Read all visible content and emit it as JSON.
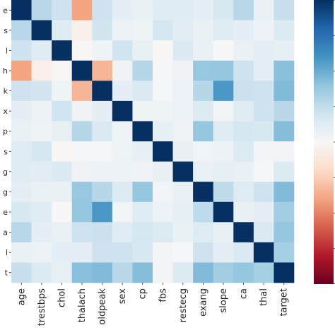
{
  "chart_data": {
    "type": "heatmap",
    "title": "",
    "xlabel": "",
    "ylabel": "",
    "categories": [
      "age",
      "trestbps",
      "chol",
      "thalach",
      "oldpeak",
      "sex",
      "cp",
      "fbs",
      "restecg",
      "exang",
      "slope",
      "ca",
      "thal",
      "target"
    ],
    "ytick_labels": [
      "e",
      "s",
      "l",
      "h",
      "k",
      "x",
      "p",
      "s",
      "g",
      "g",
      "e",
      "a",
      "l",
      "t"
    ],
    "colormap": "RdBu",
    "clim": [
      -1,
      1
    ],
    "colorbar": true,
    "colors": {
      "positive_max": "#053061",
      "neutral": "#f7f7f7",
      "negative_max": "#67001f"
    },
    "matrix": [
      [
        1.0,
        0.28,
        0.21,
        -0.4,
        0.21,
        0.1,
        0.07,
        0.12,
        0.12,
        0.1,
        0.16,
        0.28,
        0.07,
        0.23
      ],
      [
        0.28,
        1.0,
        0.12,
        -0.05,
        0.19,
        0.06,
        0.05,
        0.18,
        0.11,
        0.07,
        0.12,
        0.1,
        0.06,
        0.14
      ],
      [
        0.21,
        0.12,
        1.0,
        -0.01,
        0.05,
        0.2,
        0.08,
        -0.01,
        0.15,
        0.07,
        0.0,
        0.07,
        0.1,
        0.09
      ],
      [
        -0.4,
        -0.05,
        -0.01,
        1.0,
        -0.34,
        0.04,
        0.29,
        0.01,
        0.04,
        0.38,
        0.39,
        0.21,
        0.1,
        0.42
      ],
      [
        0.21,
        0.19,
        0.05,
        -0.34,
        1.0,
        0.1,
        0.15,
        0.01,
        0.06,
        0.29,
        0.58,
        0.22,
        0.21,
        0.44
      ],
      [
        0.1,
        0.06,
        0.2,
        0.04,
        0.1,
        1.0,
        0.05,
        0.05,
        0.06,
        0.14,
        0.03,
        0.12,
        0.21,
        0.28
      ],
      [
        0.07,
        0.05,
        0.08,
        0.29,
        0.15,
        0.05,
        1.0,
        0.09,
        0.04,
        0.39,
        0.12,
        0.18,
        0.16,
        0.43
      ],
      [
        0.12,
        0.18,
        -0.01,
        0.01,
        0.01,
        0.05,
        0.09,
        1.0,
        0.08,
        0.03,
        0.06,
        0.14,
        0.03,
        0.03
      ],
      [
        0.12,
        0.11,
        0.15,
        0.04,
        0.06,
        0.06,
        0.04,
        0.08,
        1.0,
        0.07,
        0.09,
        0.07,
        0.01,
        0.14
      ],
      [
        0.1,
        0.07,
        0.07,
        0.38,
        0.29,
        0.14,
        0.39,
        0.03,
        0.07,
        1.0,
        0.26,
        0.13,
        0.21,
        0.44
      ],
      [
        0.16,
        0.12,
        0.0,
        0.39,
        0.58,
        0.03,
        0.12,
        0.06,
        0.09,
        0.26,
        1.0,
        0.08,
        0.1,
        0.35
      ],
      [
        0.28,
        0.1,
        0.07,
        0.21,
        0.22,
        0.12,
        0.18,
        0.14,
        0.07,
        0.13,
        0.08,
        1.0,
        0.15,
        0.39
      ],
      [
        0.07,
        0.06,
        0.1,
        0.1,
        0.21,
        0.21,
        0.16,
        0.03,
        0.01,
        0.21,
        0.1,
        0.15,
        1.0,
        0.34
      ],
      [
        0.23,
        0.14,
        0.09,
        0.42,
        0.44,
        0.28,
        0.43,
        0.03,
        0.14,
        0.44,
        0.35,
        0.39,
        0.34,
        1.0
      ]
    ]
  }
}
